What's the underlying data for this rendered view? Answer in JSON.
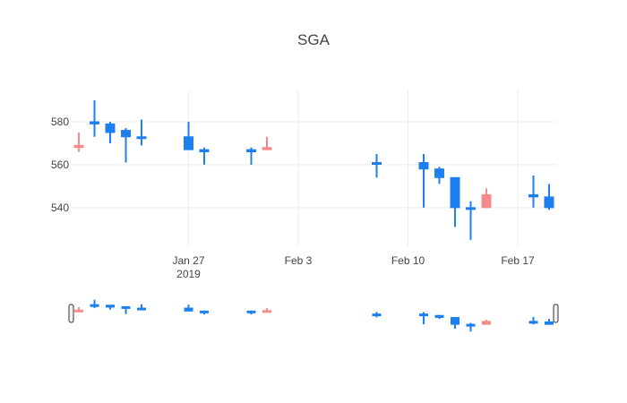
{
  "chart_data": {
    "type": "candlestick",
    "title": "SGA",
    "colors": {
      "increasing": "#1f77b4",
      "increasing_display": "#1e7ff0",
      "decreasing": "#f58a8a",
      "grid": "#eeeeee",
      "text": "#444444"
    },
    "y_ticks": [
      540,
      560,
      580
    ],
    "y_tick_labels": [
      "540",
      "560",
      "580"
    ],
    "x_ticks": [
      "2019-01-27",
      "2019-02-03",
      "2019-02-10",
      "2019-02-17"
    ],
    "x_tick_labels": [
      [
        "Jan 27",
        "2019"
      ],
      [
        "Feb 3"
      ],
      [
        "Feb 10"
      ],
      [
        "Feb 17"
      ]
    ],
    "ylim": [
      522,
      595
    ],
    "xlim": [
      "2019-01-20",
      "2019-02-19"
    ],
    "range_slider": true,
    "candles": [
      {
        "date": "2019-01-20",
        "open": 569,
        "high": 575,
        "low": 566,
        "close": 568
      },
      {
        "date": "2019-01-21",
        "open": 579,
        "high": 590,
        "low": 573,
        "close": 580
      },
      {
        "date": "2019-01-22",
        "open": 575,
        "high": 580,
        "low": 570,
        "close": 579
      },
      {
        "date": "2019-01-23",
        "open": 573,
        "high": 577,
        "low": 561,
        "close": 576
      },
      {
        "date": "2019-01-24",
        "open": 573,
        "high": 581,
        "low": 569,
        "close": 573
      },
      {
        "date": "2019-01-27",
        "open": 567,
        "high": 580,
        "low": 567,
        "close": 573
      },
      {
        "date": "2019-01-28",
        "open": 566,
        "high": 568,
        "low": 560,
        "close": 567
      },
      {
        "date": "2019-01-31",
        "open": 566,
        "high": 568,
        "low": 560,
        "close": 567
      },
      {
        "date": "2019-02-01",
        "open": 568,
        "high": 573,
        "low": 567,
        "close": 567
      },
      {
        "date": "2019-02-08",
        "open": 561,
        "high": 565,
        "low": 554,
        "close": 561
      },
      {
        "date": "2019-02-11",
        "open": 558,
        "high": 565,
        "low": 540,
        "close": 561
      },
      {
        "date": "2019-02-12",
        "open": 554,
        "high": 559,
        "low": 551,
        "close": 558
      },
      {
        "date": "2019-02-13",
        "open": 540,
        "high": 554,
        "low": 531,
        "close": 554
      },
      {
        "date": "2019-02-14",
        "open": 540,
        "high": 543,
        "low": 525,
        "close": 540
      },
      {
        "date": "2019-02-15",
        "open": 546,
        "high": 549,
        "low": 540,
        "close": 540
      },
      {
        "date": "2019-02-18",
        "open": 545,
        "high": 555,
        "low": 540,
        "close": 546
      },
      {
        "date": "2019-02-19",
        "open": 540,
        "high": 551,
        "low": 539,
        "close": 545
      }
    ]
  }
}
